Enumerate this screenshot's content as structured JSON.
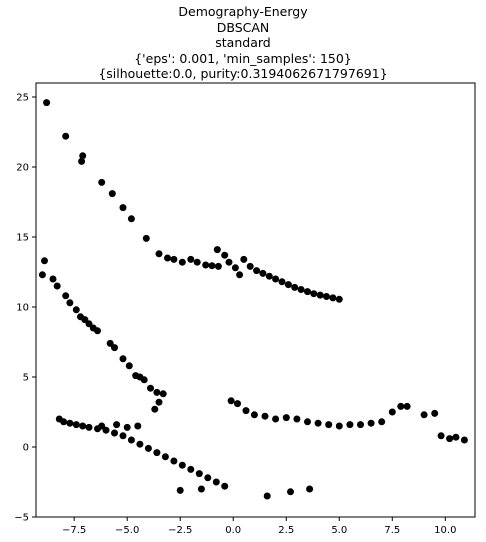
{
  "chart_data": {
    "type": "scatter",
    "title_lines": [
      "Demography-Energy",
      "DBSCAN",
      "standard",
      "{'eps': 0.001, 'min_samples': 150}",
      "{silhouette:0.0, purity:0.3194062671797691}"
    ],
    "xlabel": "",
    "ylabel": "",
    "xlim": [
      -9.3,
      11.4
    ],
    "ylim": [
      -5,
      26
    ],
    "x_ticks": [
      -7.5,
      -5.0,
      -2.5,
      0.0,
      2.5,
      5.0,
      7.5,
      10.0
    ],
    "x_tick_labels": [
      "−7.5",
      "−5.0",
      "−2.5",
      "0.0",
      "2.5",
      "5.0",
      "7.5",
      "10.0"
    ],
    "y_ticks": [
      -5,
      0,
      5,
      10,
      15,
      20,
      25
    ],
    "y_tick_labels": [
      "−5",
      "0",
      "5",
      "10",
      "15",
      "20",
      "25"
    ],
    "grid": false,
    "point_color": "#000000",
    "series": [
      {
        "points": [
          [
            -8.8,
            24.6
          ],
          [
            -7.9,
            22.2
          ],
          [
            -7.1,
            20.8
          ],
          [
            -7.15,
            20.4
          ],
          [
            -6.2,
            18.9
          ],
          [
            -5.7,
            18.1
          ],
          [
            -5.2,
            17.1
          ],
          [
            -4.8,
            16.3
          ],
          [
            -4.1,
            14.9
          ],
          [
            -3.5,
            13.8
          ],
          [
            -3.1,
            13.5
          ],
          [
            -2.8,
            13.4
          ],
          [
            -2.4,
            13.2
          ],
          [
            -2.0,
            13.4
          ],
          [
            -1.7,
            13.2
          ],
          [
            -1.3,
            13.0
          ],
          [
            -1.0,
            12.95
          ],
          [
            -0.7,
            12.9
          ],
          [
            -0.75,
            14.1
          ],
          [
            -0.4,
            13.7
          ],
          [
            -0.2,
            13.2
          ],
          [
            0.1,
            12.8
          ],
          [
            0.3,
            12.3
          ],
          [
            0.5,
            13.4
          ],
          [
            0.8,
            12.9
          ],
          [
            1.1,
            12.6
          ],
          [
            1.4,
            12.4
          ],
          [
            1.7,
            12.2
          ],
          [
            2.0,
            12.0
          ],
          [
            2.3,
            11.8
          ],
          [
            2.6,
            11.6
          ],
          [
            2.9,
            11.4
          ],
          [
            3.2,
            11.25
          ],
          [
            3.5,
            11.1
          ],
          [
            3.8,
            10.95
          ],
          [
            4.1,
            10.85
          ],
          [
            4.4,
            10.75
          ],
          [
            4.7,
            10.65
          ],
          [
            5.0,
            10.55
          ],
          [
            -9.0,
            12.3
          ],
          [
            -8.9,
            13.3
          ],
          [
            -8.5,
            12.0
          ],
          [
            -8.3,
            11.5
          ],
          [
            -7.9,
            10.8
          ],
          [
            -7.7,
            10.3
          ],
          [
            -7.4,
            9.8
          ],
          [
            -7.2,
            9.3
          ],
          [
            -7.0,
            9.1
          ],
          [
            -6.8,
            8.8
          ],
          [
            -6.6,
            8.5
          ],
          [
            -6.4,
            8.3
          ],
          [
            -5.8,
            7.4
          ],
          [
            -5.6,
            7.1
          ],
          [
            -5.2,
            6.3
          ],
          [
            -4.9,
            5.8
          ],
          [
            -4.6,
            5.1
          ],
          [
            -4.4,
            5.0
          ],
          [
            -4.2,
            4.8
          ],
          [
            -3.9,
            4.2
          ],
          [
            -3.6,
            3.9
          ],
          [
            -3.3,
            3.8
          ],
          [
            -3.5,
            3.2
          ],
          [
            -3.7,
            2.7
          ],
          [
            -8.2,
            2.0
          ],
          [
            -8.0,
            1.8
          ],
          [
            -7.7,
            1.7
          ],
          [
            -7.4,
            1.6
          ],
          [
            -7.1,
            1.5
          ],
          [
            -6.8,
            1.4
          ],
          [
            -6.4,
            1.3
          ],
          [
            -6.0,
            1.2
          ],
          [
            -5.6,
            1.0
          ],
          [
            -5.2,
            0.8
          ],
          [
            -4.8,
            0.5
          ],
          [
            -4.4,
            0.2
          ],
          [
            -4.0,
            -0.1
          ],
          [
            -3.6,
            -0.4
          ],
          [
            -3.2,
            -0.7
          ],
          [
            -2.8,
            -1.0
          ],
          [
            -2.4,
            -1.3
          ],
          [
            -2.0,
            -1.6
          ],
          [
            -1.6,
            -1.9
          ],
          [
            -1.2,
            -2.2
          ],
          [
            -0.8,
            -2.5
          ],
          [
            -0.4,
            -2.8
          ],
          [
            -1.5,
            -3.0
          ],
          [
            -2.5,
            -3.1
          ],
          [
            1.6,
            -3.5
          ],
          [
            2.7,
            -3.2
          ],
          [
            3.6,
            -3.0
          ],
          [
            -0.1,
            3.3
          ],
          [
            0.2,
            3.1
          ],
          [
            0.6,
            2.6
          ],
          [
            1.0,
            2.3
          ],
          [
            1.5,
            2.2
          ],
          [
            2.0,
            2.0
          ],
          [
            2.5,
            2.1
          ],
          [
            3.0,
            2.0
          ],
          [
            3.5,
            1.8
          ],
          [
            4.0,
            1.7
          ],
          [
            4.5,
            1.6
          ],
          [
            5.0,
            1.5
          ],
          [
            5.5,
            1.6
          ],
          [
            6.0,
            1.6
          ],
          [
            6.5,
            1.7
          ],
          [
            7.0,
            1.8
          ],
          [
            7.5,
            2.5
          ],
          [
            7.9,
            2.9
          ],
          [
            8.2,
            2.9
          ],
          [
            9.0,
            2.3
          ],
          [
            9.5,
            2.4
          ],
          [
            9.8,
            0.8
          ],
          [
            10.2,
            0.6
          ],
          [
            10.5,
            0.7
          ],
          [
            10.9,
            0.5
          ],
          [
            -4.5,
            1.5
          ],
          [
            -5.0,
            1.4
          ],
          [
            -5.5,
            1.6
          ],
          [
            -6.2,
            1.5
          ]
        ]
      }
    ]
  }
}
